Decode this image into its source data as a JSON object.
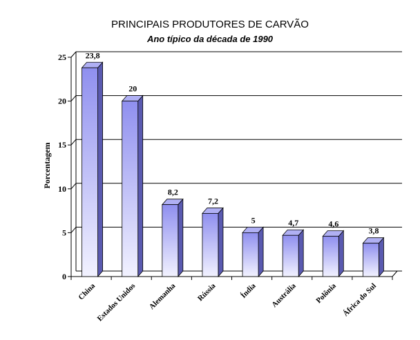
{
  "chart_data": {
    "type": "bar",
    "title": "PRINCIPAIS PRODUTORES DE CARVÃO",
    "subtitle": "Ano típico da década de 1990",
    "xlabel": "",
    "ylabel": "Porcentagem",
    "categories": [
      "China",
      "Estados Unidos",
      "Alemanha",
      "Rússia",
      "Índia",
      "Austrália",
      "Polônia",
      "África do Sul"
    ],
    "values": [
      23.8,
      20,
      8.2,
      7.2,
      5,
      4.7,
      4.6,
      3.8
    ],
    "data_labels": [
      "23,8",
      "20",
      "8,2",
      "7,2",
      "5",
      "4,7",
      "4,6",
      "3,8"
    ],
    "yticks": [
      0,
      5,
      10,
      15,
      20,
      25
    ],
    "ylim": [
      0,
      25
    ],
    "grid": true,
    "three_d": true,
    "colors": {
      "bar_top": "#8f8fef",
      "bar_bottom": "#f2f2ff",
      "bar_side": "#5a5ab0",
      "bar_cap": "#b0b0f4",
      "grid": "#000000"
    }
  }
}
